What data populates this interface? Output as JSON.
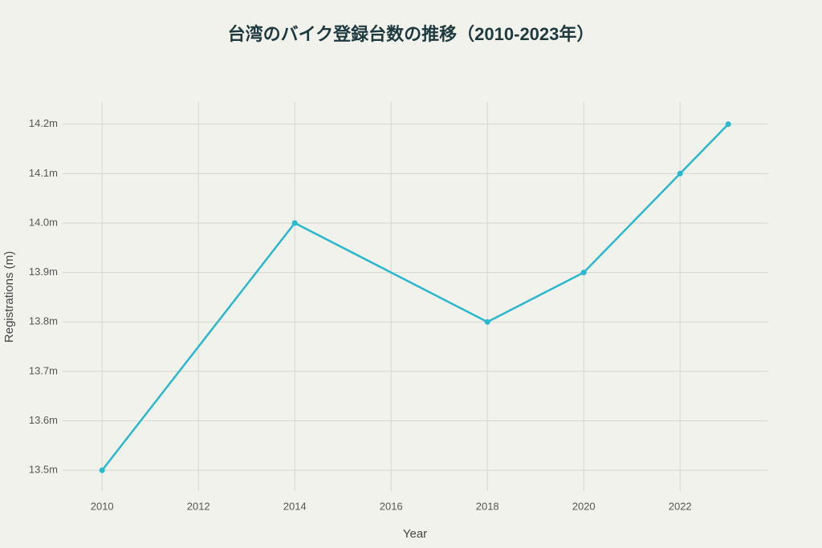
{
  "chart_data": {
    "type": "line",
    "title": "台湾のバイク登録台数の推移（2010-2023年）",
    "x_label": "Year",
    "y_label": "Registrations (m)",
    "x": [
      2010,
      2014,
      2018,
      2020,
      2022,
      2023
    ],
    "series": [
      {
        "name": "Registrations",
        "color": "#2bb8cc",
        "values": [
          13.5,
          14.0,
          13.8,
          13.9,
          14.1,
          14.2
        ]
      }
    ],
    "xlim": [
      2009.18,
      2023.83
    ],
    "xticks": [
      2010,
      2012,
      2014,
      2016,
      2018,
      2020,
      2022
    ],
    "ylim": [
      13.458,
      14.245
    ],
    "yticks": [
      {
        "value": 13.5,
        "label": "13.5m"
      },
      {
        "value": 13.6,
        "label": "13.6m"
      },
      {
        "value": 13.7,
        "label": "13.7m"
      },
      {
        "value": 13.8,
        "label": "13.8m"
      },
      {
        "value": 13.9,
        "label": "13.9m"
      },
      {
        "value": 14.0,
        "label": "14.0m"
      },
      {
        "value": 14.1,
        "label": "14.1m"
      },
      {
        "value": 14.2,
        "label": "14.2m"
      }
    ],
    "grid": true
  }
}
